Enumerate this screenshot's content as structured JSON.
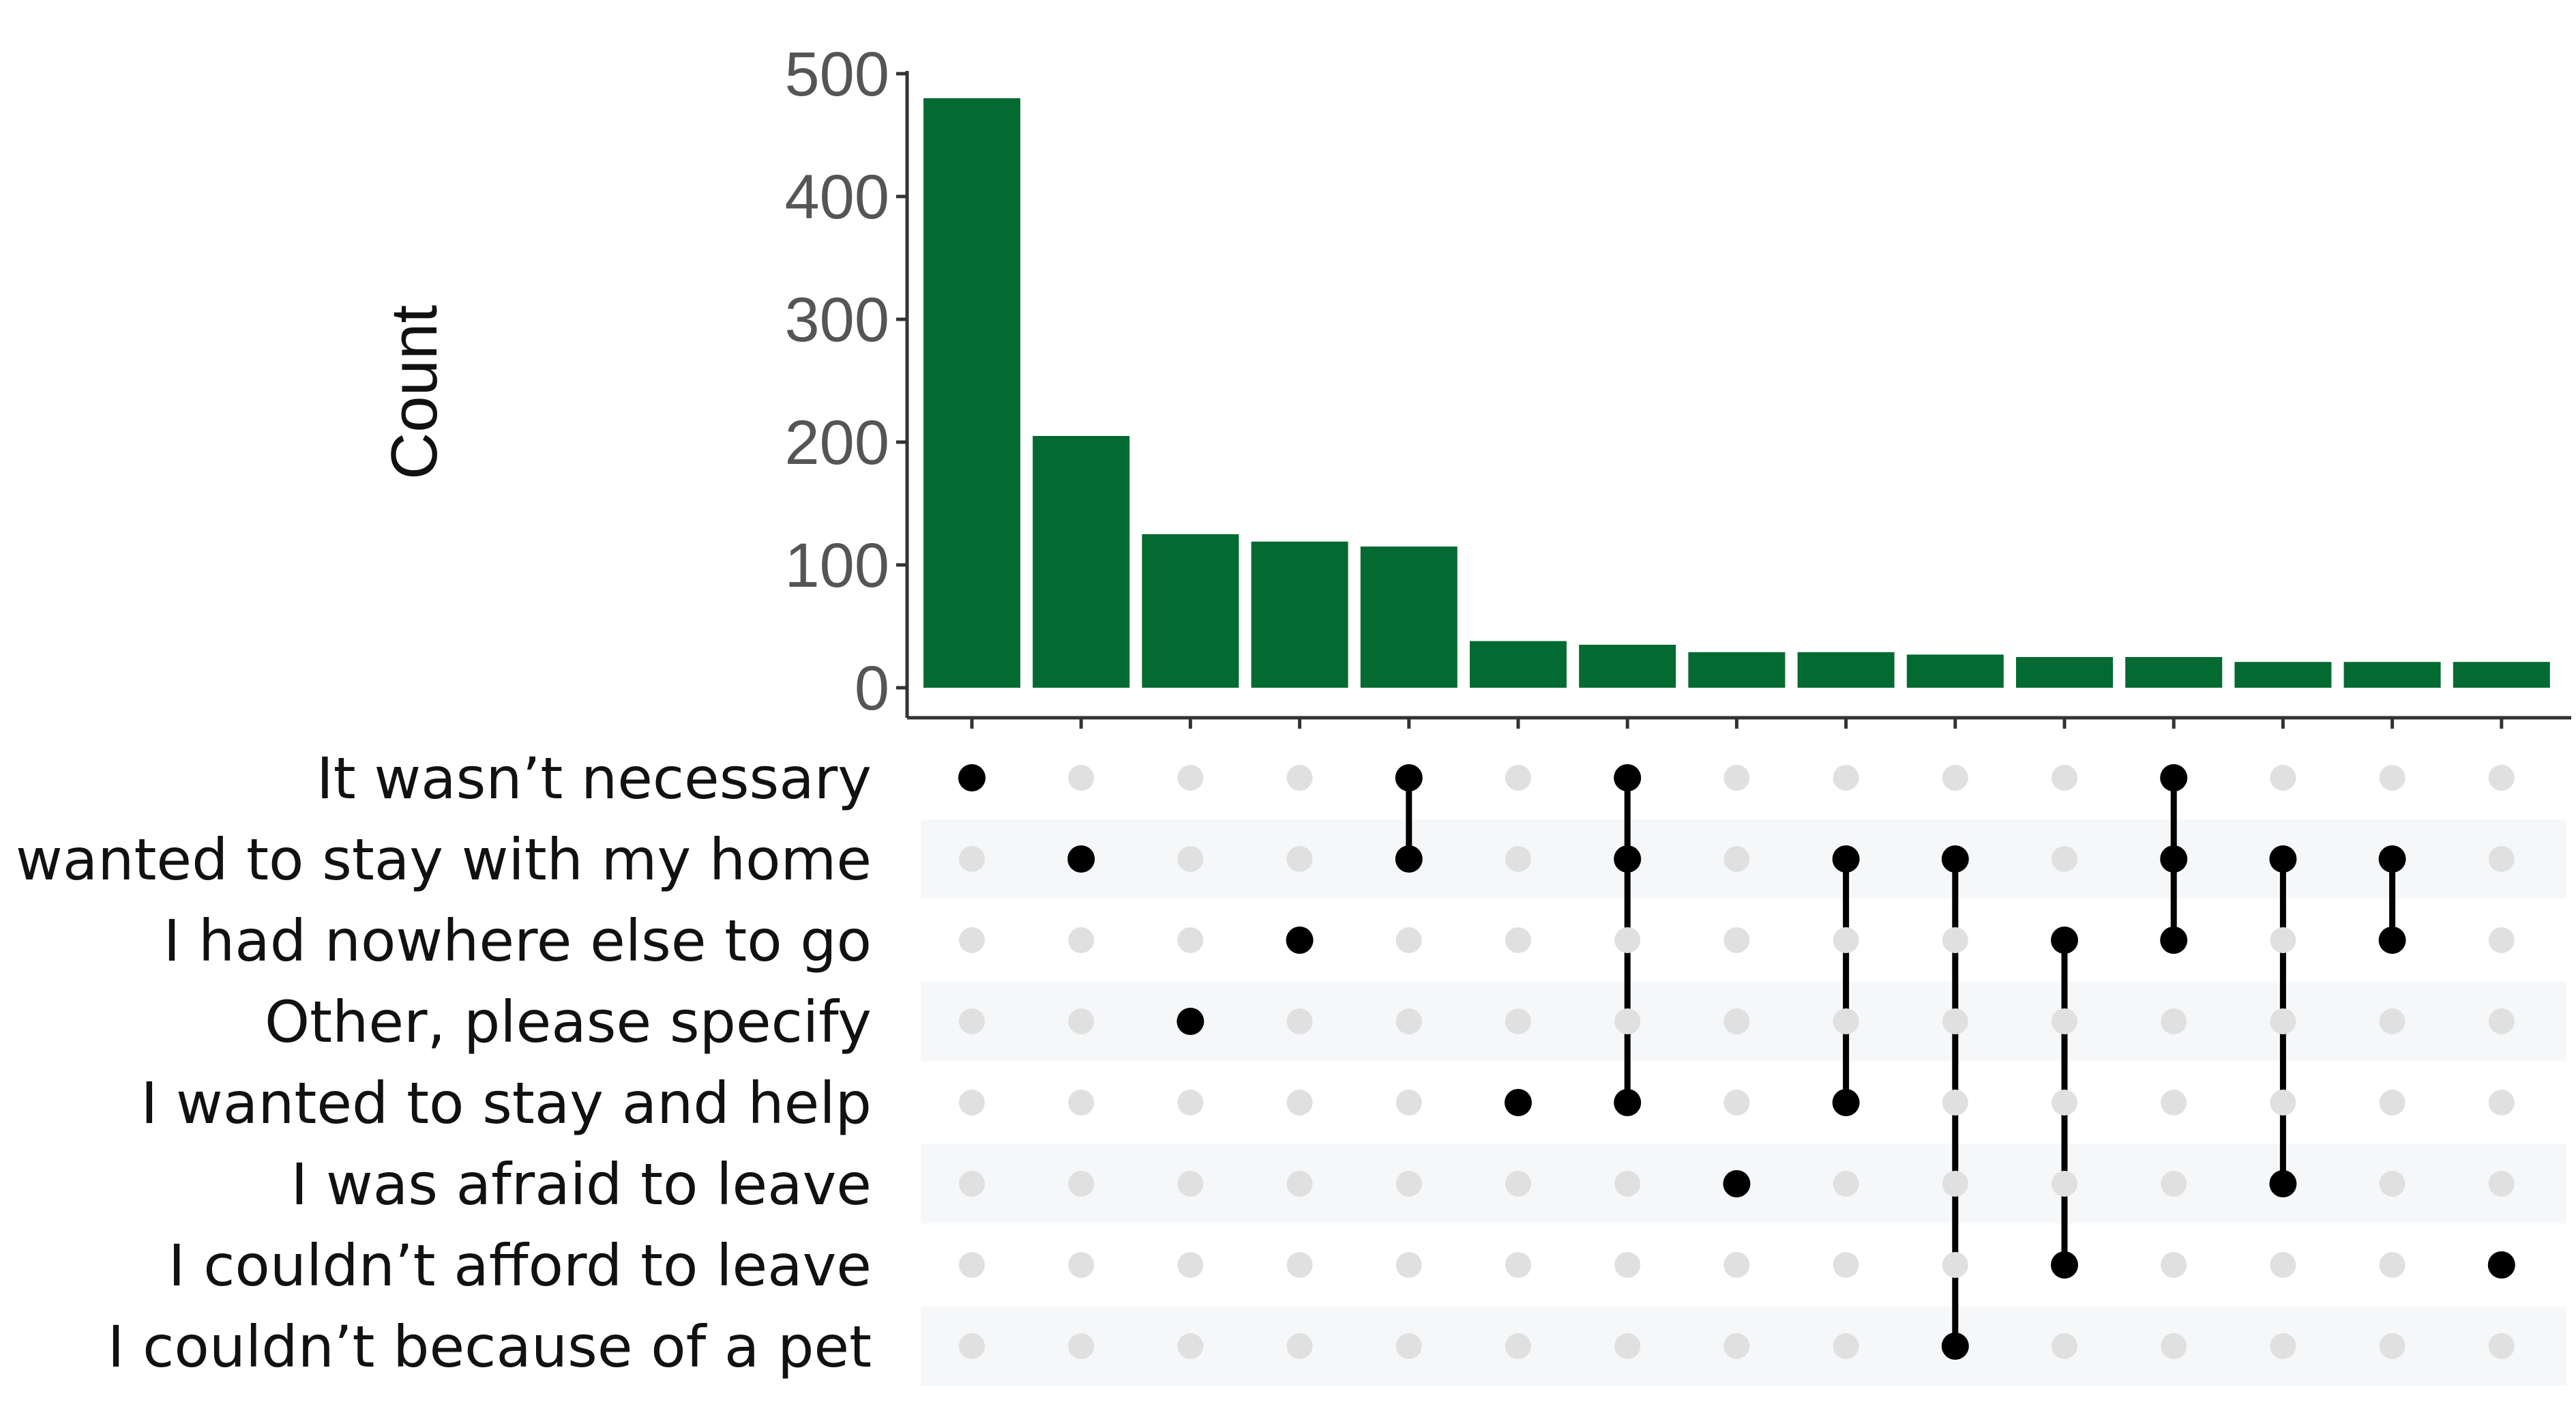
{
  "chart_data": {
    "type": "upset",
    "title": "",
    "ylabel": "Count",
    "ylim": [
      0,
      500
    ],
    "yticks": [
      0,
      100,
      200,
      300,
      400,
      500
    ],
    "bar_color": "#036a32",
    "active_dot_color": "#000000",
    "inactive_dot_color": "#e0e0e0",
    "stripe_color": "#f5f7f9",
    "sets": [
      "It wasn’t necessary",
      "I wanted to stay with my home",
      "I had nowhere else to go",
      "Other, please specify",
      "I wanted to stay and help",
      "I was afraid to leave",
      "I couldn’t afford to leave",
      "I couldn’t because of a pet"
    ],
    "intersections": [
      {
        "members": [
          0
        ],
        "count": 480
      },
      {
        "members": [
          1
        ],
        "count": 205
      },
      {
        "members": [
          3
        ],
        "count": 125
      },
      {
        "members": [
          2
        ],
        "count": 119
      },
      {
        "members": [
          0,
          1
        ],
        "count": 115
      },
      {
        "members": [
          4
        ],
        "count": 38
      },
      {
        "members": [
          0,
          1,
          4
        ],
        "count": 35
      },
      {
        "members": [
          5
        ],
        "count": 29
      },
      {
        "members": [
          1,
          4
        ],
        "count": 29
      },
      {
        "members": [
          1,
          7
        ],
        "count": 27
      },
      {
        "members": [
          2,
          6
        ],
        "count": 25
      },
      {
        "members": [
          0,
          1,
          2
        ],
        "count": 25
      },
      {
        "members": [
          1,
          5
        ],
        "count": 21
      },
      {
        "members": [
          1,
          2
        ],
        "count": 21
      },
      {
        "members": [
          6
        ],
        "count": 21
      }
    ]
  }
}
